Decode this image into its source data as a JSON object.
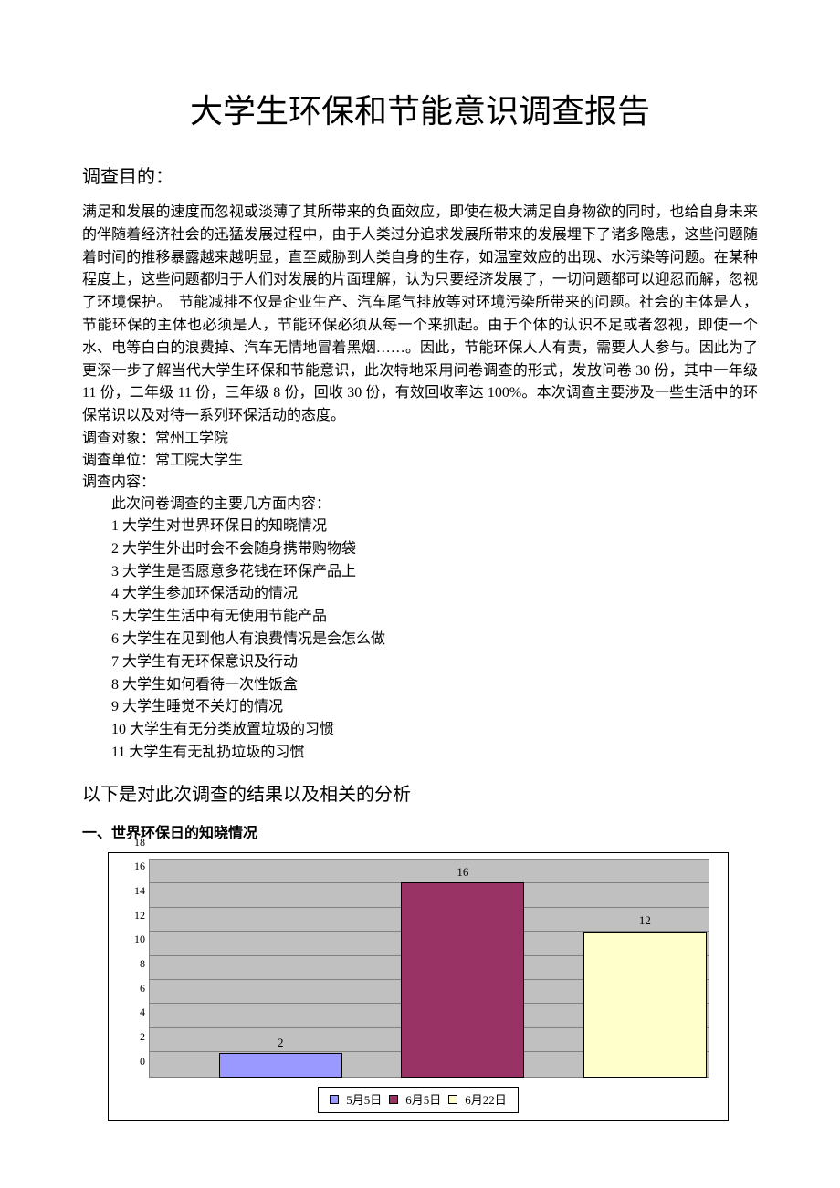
{
  "title": "大学生环保和节能意识调查报告",
  "purpose_heading": "调查目的：",
  "purpose_body": "满足和发展的速度而忽视或淡薄了其所带来的负面效应，即使在极大满足自身物欲的同时，也给自身未来的伴随着经济社会的迅猛发展过程中，由于人类过分追求发展所带来的发展埋下了诸多隐患，这些问题随着时间的推移暴露越来越明显，直至威胁到人类自身的生存，如温室效应的出现、水污染等问题。在某种程度上，这些问题都归于人们对发展的片面理解，认为只要经济发展了，一切问题都可以迎忍而解，忽视了环境保护。　节能减排不仅是企业生产、汽车尾气排放等对环境污染所带来的问题。社会的主体是人，节能环保的主体也必须是人，节能环保必须从每一个来抓起。由于个体的认识不足或者忽视，即使一个水、电等白白的浪费掉、汽车无情地冒着黑烟……。因此，节能环保人人有责，需要人人参与。因此为了更深一步了解当代大学生环保和节能意识，此次特地采用问卷调查的形式，发放问卷 30 份，其中一年级 11 份，二年级 11 份，三年级 8 份，回收 30 份，有效回收率达 100%。本次调查主要涉及一些生活中的环保常识以及对待一系列环保活动的态度。",
  "meta": {
    "target": "调查对象：常州工学院",
    "unit": "调查单位：常工院大学生",
    "content_heading": "调查内容："
  },
  "content_intro": "此次问卷调查的主要几方面内容：",
  "content_items": [
    "1  大学生对世界环保日的知晓情况",
    "2  大学生外出时会不会随身携带购物袋",
    "3  大学生是否愿意多花钱在环保产品上",
    "4  大学生参加环保活动的情况",
    "5  大学生生活中有无使用节能产品",
    "6  大学生在见到他人有浪费情况是会怎么做",
    "7  大学生有无环保意识及行动",
    "8  大学生如何看待一次性饭盒",
    "9  大学生睡觉不关灯的情况",
    "10  大学生有无分类放置垃圾的习惯",
    "11  大学生有无乱扔垃圾的习惯"
  ],
  "results_heading": "以下是对此次调查的结果以及相关的分析",
  "section1_heading": "一、世界环保日的知晓情况",
  "chart": {
    "type": "bar",
    "categories": [
      "5月5日",
      "6月5日",
      "6月22日"
    ],
    "values": [
      2,
      16,
      12
    ],
    "bar_colors": [
      "#9999ff",
      "#993366",
      "#ffffcc"
    ],
    "ylim": [
      0,
      18
    ],
    "ytick_step": 2,
    "plot_background": "#c0c0c0",
    "grid_color": "#808080",
    "border_color": "#000000",
    "label_fontsize": 12,
    "bar_width_pct": 22,
    "bar_positions_pct": [
      12.5,
      45,
      77.5
    ]
  }
}
